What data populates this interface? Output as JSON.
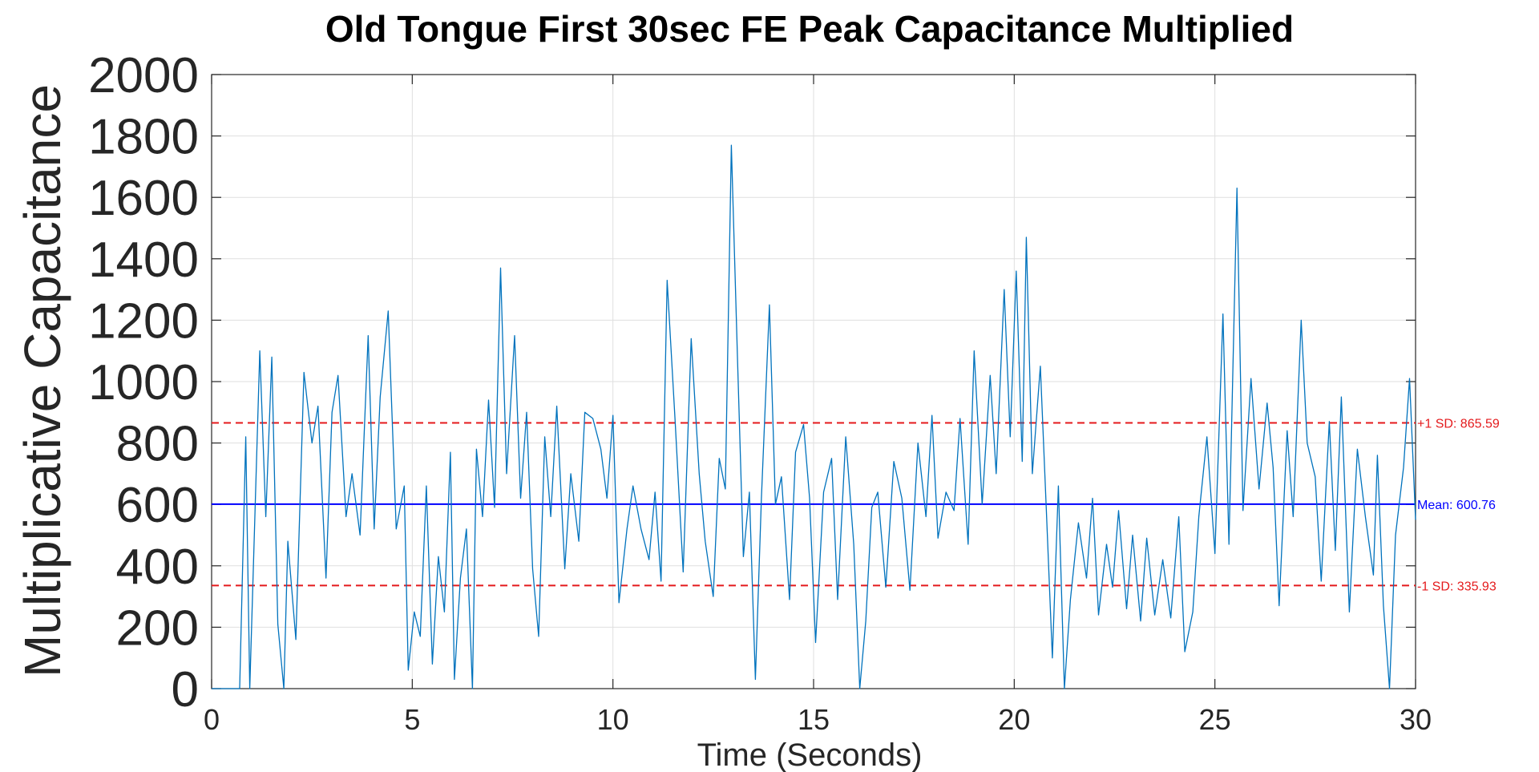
{
  "chart_data": {
    "type": "line",
    "title": "Old Tongue First 30sec FE Peak Capacitance Multiplied",
    "xlabel": "Time (Seconds)",
    "ylabel": "Multiplicative Capacitance",
    "xlim": [
      0,
      30
    ],
    "ylim": [
      0,
      2000
    ],
    "xticks": [
      0,
      5,
      10,
      15,
      20,
      25,
      30
    ],
    "yticks": [
      0,
      200,
      400,
      600,
      800,
      1000,
      1200,
      1400,
      1600,
      1800,
      2000
    ],
    "grid": true,
    "colors": {
      "series": "#0072bd",
      "mean": "#0000ff",
      "sd": "#e41a1c",
      "title": "#000000",
      "axis_text": "#262626"
    },
    "reference_lines": [
      {
        "label": "+1 SD: 865.59",
        "y": 865.59,
        "style": "dashed",
        "color": "#e41a1c"
      },
      {
        "label": "Mean: 600.76",
        "y": 600.76,
        "style": "solid",
        "color": "#0000ff"
      },
      {
        "label": "-1 SD: 335.93",
        "y": 335.93,
        "style": "dashed",
        "color": "#e41a1c"
      }
    ],
    "series": [
      {
        "points": [
          [
            0.0,
            0
          ],
          [
            0.7,
            0
          ],
          [
            0.85,
            820
          ],
          [
            0.95,
            0
          ],
          [
            1.2,
            1100
          ],
          [
            1.35,
            560
          ],
          [
            1.5,
            1080
          ],
          [
            1.65,
            210
          ],
          [
            1.8,
            0
          ],
          [
            1.9,
            480
          ],
          [
            2.1,
            160
          ],
          [
            2.3,
            1030
          ],
          [
            2.5,
            800
          ],
          [
            2.65,
            920
          ],
          [
            2.85,
            360
          ],
          [
            3.0,
            900
          ],
          [
            3.15,
            1020
          ],
          [
            3.35,
            560
          ],
          [
            3.5,
            700
          ],
          [
            3.7,
            500
          ],
          [
            3.9,
            1150
          ],
          [
            4.05,
            520
          ],
          [
            4.2,
            950
          ],
          [
            4.4,
            1230
          ],
          [
            4.6,
            520
          ],
          [
            4.8,
            660
          ],
          [
            4.9,
            60
          ],
          [
            5.05,
            250
          ],
          [
            5.2,
            170
          ],
          [
            5.35,
            660
          ],
          [
            5.5,
            80
          ],
          [
            5.65,
            430
          ],
          [
            5.8,
            250
          ],
          [
            5.95,
            770
          ],
          [
            6.05,
            30
          ],
          [
            6.2,
            360
          ],
          [
            6.35,
            520
          ],
          [
            6.5,
            0
          ],
          [
            6.6,
            780
          ],
          [
            6.75,
            560
          ],
          [
            6.9,
            940
          ],
          [
            7.05,
            590
          ],
          [
            7.2,
            1370
          ],
          [
            7.35,
            700
          ],
          [
            7.55,
            1150
          ],
          [
            7.7,
            620
          ],
          [
            7.85,
            900
          ],
          [
            8.0,
            390
          ],
          [
            8.15,
            170
          ],
          [
            8.3,
            820
          ],
          [
            8.45,
            560
          ],
          [
            8.6,
            920
          ],
          [
            8.8,
            390
          ],
          [
            8.95,
            700
          ],
          [
            9.15,
            480
          ],
          [
            9.3,
            900
          ],
          [
            9.5,
            880
          ],
          [
            9.7,
            780
          ],
          [
            9.85,
            620
          ],
          [
            10.0,
            890
          ],
          [
            10.15,
            280
          ],
          [
            10.35,
            520
          ],
          [
            10.5,
            660
          ],
          [
            10.7,
            520
          ],
          [
            10.9,
            420
          ],
          [
            11.05,
            640
          ],
          [
            11.2,
            350
          ],
          [
            11.35,
            1330
          ],
          [
            11.55,
            870
          ],
          [
            11.75,
            380
          ],
          [
            11.95,
            1140
          ],
          [
            12.15,
            700
          ],
          [
            12.3,
            480
          ],
          [
            12.5,
            300
          ],
          [
            12.65,
            750
          ],
          [
            12.8,
            650
          ],
          [
            12.95,
            1770
          ],
          [
            13.1,
            1090
          ],
          [
            13.25,
            430
          ],
          [
            13.4,
            640
          ],
          [
            13.55,
            30
          ],
          [
            13.7,
            620
          ],
          [
            13.9,
            1250
          ],
          [
            14.05,
            600
          ],
          [
            14.2,
            690
          ],
          [
            14.4,
            290
          ],
          [
            14.55,
            770
          ],
          [
            14.75,
            860
          ],
          [
            14.9,
            620
          ],
          [
            15.05,
            150
          ],
          [
            15.25,
            640
          ],
          [
            15.45,
            750
          ],
          [
            15.6,
            290
          ],
          [
            15.8,
            820
          ],
          [
            16.0,
            470
          ],
          [
            16.15,
            0
          ],
          [
            16.3,
            220
          ],
          [
            16.45,
            590
          ],
          [
            16.6,
            640
          ],
          [
            16.8,
            330
          ],
          [
            17.0,
            740
          ],
          [
            17.2,
            620
          ],
          [
            17.4,
            320
          ],
          [
            17.6,
            800
          ],
          [
            17.8,
            560
          ],
          [
            17.95,
            890
          ],
          [
            18.1,
            490
          ],
          [
            18.3,
            640
          ],
          [
            18.5,
            580
          ],
          [
            18.65,
            880
          ],
          [
            18.85,
            470
          ],
          [
            19.0,
            1100
          ],
          [
            19.2,
            600
          ],
          [
            19.4,
            1020
          ],
          [
            19.55,
            700
          ],
          [
            19.75,
            1300
          ],
          [
            19.9,
            820
          ],
          [
            20.05,
            1360
          ],
          [
            20.2,
            740
          ],
          [
            20.3,
            1470
          ],
          [
            20.45,
            700
          ],
          [
            20.65,
            1050
          ],
          [
            20.8,
            580
          ],
          [
            20.95,
            100
          ],
          [
            21.1,
            660
          ],
          [
            21.25,
            0
          ],
          [
            21.4,
            290
          ],
          [
            21.6,
            540
          ],
          [
            21.8,
            360
          ],
          [
            21.95,
            620
          ],
          [
            22.1,
            240
          ],
          [
            22.3,
            470
          ],
          [
            22.45,
            330
          ],
          [
            22.6,
            580
          ],
          [
            22.8,
            260
          ],
          [
            22.95,
            500
          ],
          [
            23.15,
            220
          ],
          [
            23.3,
            490
          ],
          [
            23.5,
            240
          ],
          [
            23.7,
            420
          ],
          [
            23.9,
            230
          ],
          [
            24.1,
            560
          ],
          [
            24.25,
            120
          ],
          [
            24.45,
            250
          ],
          [
            24.6,
            560
          ],
          [
            24.8,
            820
          ],
          [
            25.0,
            440
          ],
          [
            25.2,
            1220
          ],
          [
            25.35,
            470
          ],
          [
            25.55,
            1630
          ],
          [
            25.7,
            580
          ],
          [
            25.9,
            1010
          ],
          [
            26.1,
            650
          ],
          [
            26.3,
            930
          ],
          [
            26.45,
            720
          ],
          [
            26.6,
            270
          ],
          [
            26.8,
            840
          ],
          [
            26.95,
            560
          ],
          [
            27.15,
            1200
          ],
          [
            27.3,
            800
          ],
          [
            27.5,
            690
          ],
          [
            27.65,
            350
          ],
          [
            27.85,
            870
          ],
          [
            28.0,
            450
          ],
          [
            28.15,
            950
          ],
          [
            28.35,
            250
          ],
          [
            28.55,
            780
          ],
          [
            28.75,
            560
          ],
          [
            28.95,
            370
          ],
          [
            29.05,
            760
          ],
          [
            29.2,
            270
          ],
          [
            29.35,
            0
          ],
          [
            29.5,
            500
          ],
          [
            29.7,
            720
          ],
          [
            29.85,
            1010
          ],
          [
            30.0,
            550
          ]
        ]
      }
    ]
  }
}
